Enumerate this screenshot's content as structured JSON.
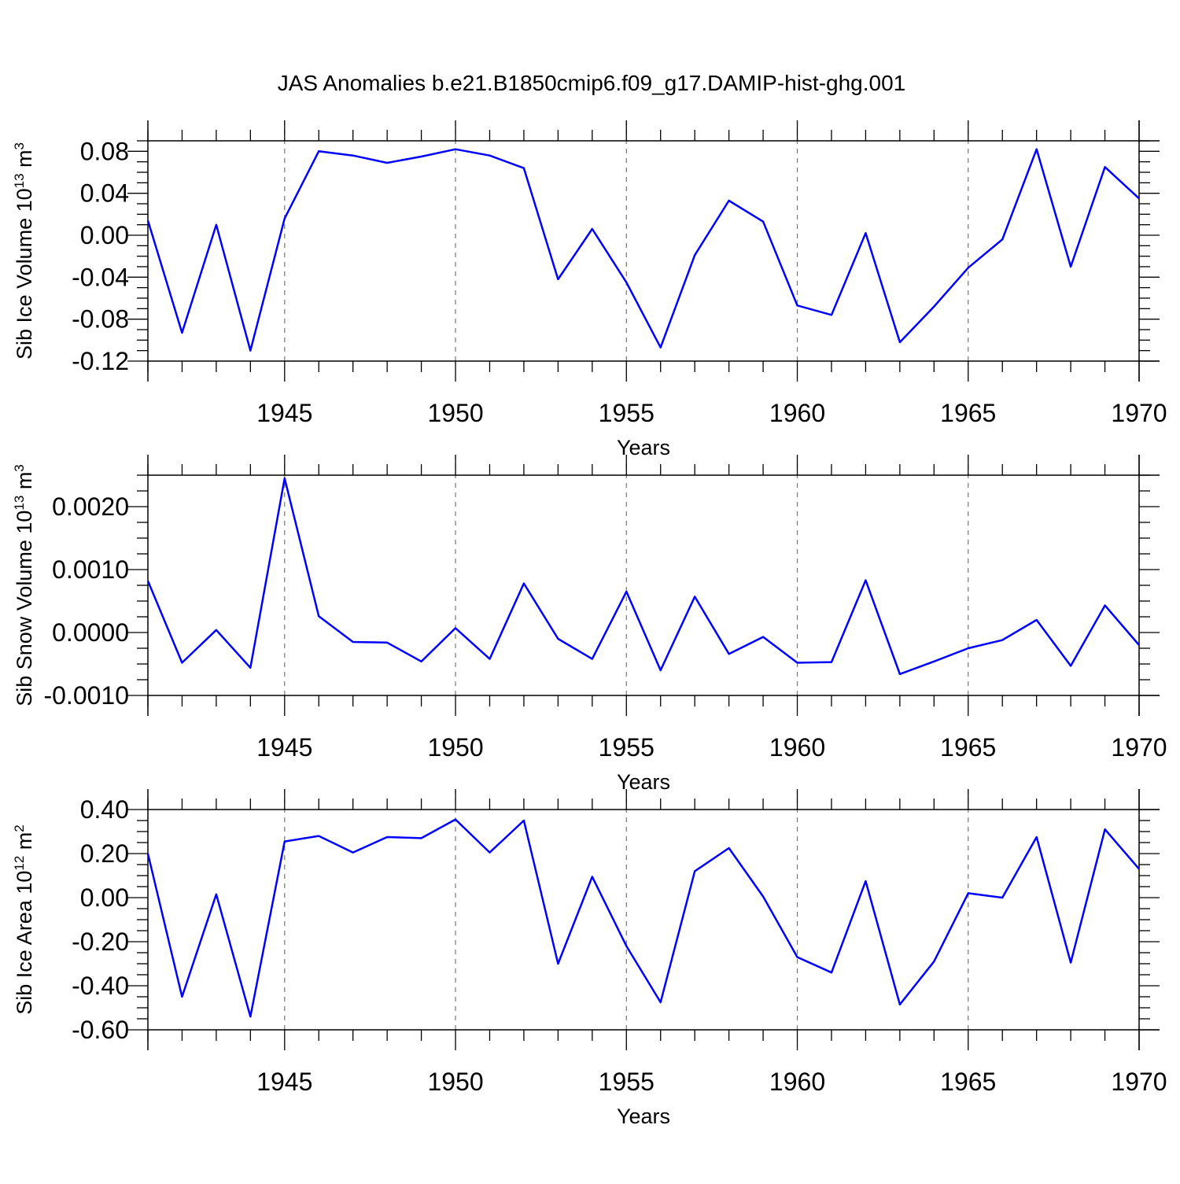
{
  "chart_data": {
    "title": "JAS Anomalies b.e21.B1850cmip6.f09_g17.DAMIP-hist-ghg.001",
    "line_color": "#0000ff",
    "years": [
      1941,
      1942,
      1943,
      1944,
      1945,
      1946,
      1947,
      1948,
      1949,
      1950,
      1951,
      1952,
      1953,
      1954,
      1955,
      1956,
      1957,
      1958,
      1959,
      1960,
      1961,
      1962,
      1963,
      1964,
      1965,
      1966,
      1967,
      1968,
      1969,
      1970
    ],
    "panels": [
      {
        "type": "line",
        "ylabel": "Sib Ice Volume 10",
        "ylabel_exp": "13",
        "ylabel_unit": " m",
        "ylabel_unit_exp": "3",
        "xlabel": "Years",
        "ylim": [
          -0.12,
          0.09
        ],
        "xlim": [
          1941,
          1970
        ],
        "ytick_values": [
          -0.12,
          -0.08,
          -0.04,
          0.0,
          0.04,
          0.08
        ],
        "ytick_labels": [
          "-0.12",
          "-0.08",
          "-0.04",
          "0.00",
          "0.04",
          "0.08"
        ],
        "xtick_values": [
          1945,
          1950,
          1955,
          1960,
          1965,
          1970
        ],
        "xtick_labels": [
          "1945",
          "1950",
          "1955",
          "1960",
          "1965",
          "1970"
        ],
        "values": [
          0.014,
          -0.093,
          0.01,
          -0.11,
          0.016,
          0.08,
          0.076,
          0.069,
          0.075,
          0.082,
          0.076,
          0.064,
          -0.042,
          0.006,
          -0.045,
          -0.107,
          -0.019,
          0.033,
          0.013,
          -0.067,
          -0.076,
          0.002,
          -0.102,
          -0.068,
          -0.031,
          -0.004,
          0.082,
          -0.03,
          0.065,
          0.035
        ]
      },
      {
        "type": "line",
        "ylabel": "Sib Snow Volume 10",
        "ylabel_exp": "13",
        "ylabel_unit": " m",
        "ylabel_unit_exp": "3",
        "xlabel": "Years",
        "ylim": [
          -0.001,
          0.0025
        ],
        "xlim": [
          1941,
          1970
        ],
        "ytick_values": [
          -0.001,
          0.0,
          0.001,
          0.002
        ],
        "ytick_labels": [
          "-0.0010",
          "0.0000",
          "0.0010",
          "0.0020"
        ],
        "xtick_values": [
          1945,
          1950,
          1955,
          1960,
          1965,
          1970
        ],
        "xtick_labels": [
          "1945",
          "1950",
          "1955",
          "1960",
          "1965",
          "1970"
        ],
        "values": [
          0.00082,
          -0.00048,
          4e-05,
          -0.00056,
          0.00245,
          0.00026,
          -0.00015,
          -0.00016,
          -0.00046,
          7e-05,
          -0.00042,
          0.00078,
          -0.0001,
          -0.00042,
          0.00065,
          -0.0006,
          0.00057,
          -0.00034,
          -7e-05,
          -0.00048,
          -0.00047,
          0.00083,
          -0.00066,
          -0.00046,
          -0.00025,
          -0.00012,
          0.0002,
          -0.00053,
          0.00043,
          -0.0002
        ]
      },
      {
        "type": "line",
        "ylabel": "Sib Ice Area 10",
        "ylabel_exp": "12",
        "ylabel_unit": " m",
        "ylabel_unit_exp": "2",
        "xlabel": "Years",
        "ylim": [
          -0.6,
          0.4
        ],
        "xlim": [
          1941,
          1970
        ],
        "ytick_values": [
          -0.6,
          -0.4,
          -0.2,
          0.0,
          0.2,
          0.4
        ],
        "ytick_labels": [
          "-0.60",
          "-0.40",
          "-0.20",
          "0.00",
          "0.20",
          "0.40"
        ],
        "xtick_values": [
          1945,
          1950,
          1955,
          1960,
          1965,
          1970
        ],
        "xtick_labels": [
          "1945",
          "1950",
          "1955",
          "1960",
          "1965",
          "1970"
        ],
        "values": [
          0.2,
          -0.45,
          0.015,
          -0.54,
          0.255,
          0.28,
          0.205,
          0.275,
          0.27,
          0.355,
          0.205,
          0.35,
          -0.3,
          0.095,
          -0.22,
          -0.475,
          0.12,
          0.225,
          0.005,
          -0.27,
          -0.34,
          0.075,
          -0.485,
          -0.29,
          0.02,
          0.0,
          0.275,
          -0.295,
          0.31,
          0.13
        ]
      }
    ]
  }
}
